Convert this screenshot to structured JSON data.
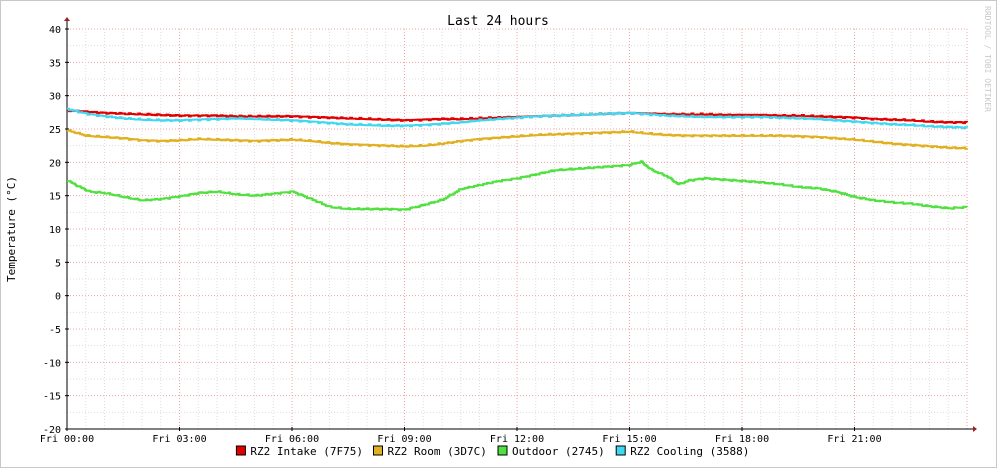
{
  "chart_data": {
    "type": "line",
    "title": "Last 24 hours",
    "ylabel": "Temperature (°C)",
    "xlabel": "",
    "watermark": "RRDTOOL / TOBI OETIKER",
    "ylim": [
      -20,
      40
    ],
    "yticks": [
      "40",
      "35",
      "30",
      "25",
      "20",
      "15",
      "10",
      "5",
      "0",
      "-5",
      "-10",
      "-15",
      "-20"
    ],
    "xlim_hours": [
      0,
      24
    ],
    "xticks": [
      {
        "hour": 0,
        "label": "Fri 00:00"
      },
      {
        "hour": 3,
        "label": "Fri 03:00"
      },
      {
        "hour": 6,
        "label": "Fri 06:00"
      },
      {
        "hour": 9,
        "label": "Fri 09:00"
      },
      {
        "hour": 12,
        "label": "Fri 12:00"
      },
      {
        "hour": 15,
        "label": "Fri 15:00"
      },
      {
        "hour": 18,
        "label": "Fri 18:00"
      },
      {
        "hour": 21,
        "label": "Fri 21:00"
      }
    ],
    "grid": true,
    "legend_position": "bottom",
    "colors": {
      "background": "#ffffff",
      "minor_grid": "#dddddd",
      "major_grid": "#f0a0a0",
      "axis": "#000000",
      "arrow": "#a02020",
      "text": "#000000",
      "watermark": "#c8c8c8"
    },
    "series": [
      {
        "name": "RZ2 Intake (7F75)",
        "color": "#e00000",
        "hours": [
          0,
          0.5,
          1,
          1.5,
          2,
          2.5,
          3,
          3.5,
          4,
          4.5,
          5,
          5.5,
          6,
          6.5,
          7,
          7.5,
          8,
          8.5,
          9,
          9.5,
          10,
          10.5,
          11,
          11.5,
          12,
          12.5,
          13,
          13.5,
          14,
          14.5,
          15,
          15.5,
          16,
          16.5,
          17,
          17.5,
          18,
          18.5,
          19,
          19.5,
          20,
          20.5,
          21,
          21.5,
          22,
          22.5,
          23,
          23.5,
          24
        ],
        "values": [
          27.8,
          27.6,
          27.4,
          27.3,
          27.2,
          27.1,
          27.0,
          27.0,
          27.0,
          26.9,
          26.9,
          26.9,
          26.9,
          26.8,
          26.7,
          26.6,
          26.5,
          26.4,
          26.3,
          26.4,
          26.5,
          26.5,
          26.6,
          26.7,
          26.8,
          26.9,
          27.0,
          27.1,
          27.2,
          27.3,
          27.4,
          27.3,
          27.2,
          27.2,
          27.2,
          27.1,
          27.1,
          27.1,
          27.0,
          27.0,
          26.9,
          26.8,
          26.7,
          26.5,
          26.4,
          26.3,
          26.1,
          26.0,
          26.0
        ]
      },
      {
        "name": "RZ2 Room (3D7C)",
        "color": "#e0b020",
        "hours": [
          0,
          0.5,
          1,
          1.5,
          2,
          2.5,
          3,
          3.5,
          4,
          4.5,
          5,
          5.5,
          6,
          6.5,
          7,
          7.5,
          8,
          8.5,
          9,
          9.5,
          10,
          10.5,
          11,
          11.5,
          12,
          12.5,
          13,
          13.5,
          14,
          14.5,
          15,
          15.5,
          16,
          16.5,
          17,
          17.5,
          18,
          18.5,
          19,
          19.5,
          20,
          20.5,
          21,
          21.5,
          22,
          22.5,
          23,
          23.5,
          24
        ],
        "values": [
          24.8,
          24.0,
          23.8,
          23.6,
          23.3,
          23.2,
          23.3,
          23.5,
          23.4,
          23.3,
          23.2,
          23.3,
          23.4,
          23.2,
          22.9,
          22.7,
          22.6,
          22.5,
          22.4,
          22.5,
          22.8,
          23.2,
          23.5,
          23.7,
          23.9,
          24.1,
          24.2,
          24.3,
          24.4,
          24.5,
          24.6,
          24.3,
          24.1,
          24.0,
          24.0,
          24.0,
          24.0,
          24.0,
          24.0,
          23.9,
          23.8,
          23.6,
          23.4,
          23.1,
          22.8,
          22.6,
          22.4,
          22.2,
          22.1
        ]
      },
      {
        "name": "Outdoor (2745)",
        "color": "#50e040",
        "hours": [
          0,
          0.3,
          0.6,
          1,
          1.5,
          2,
          2.5,
          3,
          3.5,
          4,
          4.5,
          5,
          5.5,
          6,
          6.5,
          7,
          7.5,
          8,
          8.5,
          9,
          9.5,
          10,
          10.5,
          11,
          11.5,
          12,
          12.5,
          13,
          13.5,
          14,
          14.5,
          15,
          15.3,
          15.6,
          16,
          16.3,
          16.6,
          17,
          17.5,
          18,
          18.5,
          19,
          19.5,
          20,
          20.5,
          21,
          21.5,
          22,
          22.5,
          23,
          23.5,
          24
        ],
        "values": [
          17.3,
          16.4,
          15.6,
          15.4,
          14.8,
          14.3,
          14.5,
          14.9,
          15.4,
          15.6,
          15.2,
          15.0,
          15.3,
          15.6,
          14.5,
          13.3,
          13.0,
          13.0,
          13.0,
          12.9,
          13.6,
          14.4,
          16.0,
          16.6,
          17.2,
          17.6,
          18.2,
          18.8,
          19.0,
          19.2,
          19.4,
          19.6,
          20.1,
          18.8,
          17.9,
          16.7,
          17.3,
          17.6,
          17.4,
          17.2,
          17.0,
          16.7,
          16.3,
          16.1,
          15.6,
          14.8,
          14.3,
          14.0,
          13.8,
          13.4,
          13.1,
          13.3
        ]
      },
      {
        "name": "RZ2 Cooling (3588)",
        "color": "#40d8f0",
        "hours": [
          0,
          0.5,
          1,
          1.5,
          2,
          2.5,
          3,
          3.5,
          4,
          4.5,
          5,
          5.5,
          6,
          6.5,
          7,
          7.5,
          8,
          8.5,
          9,
          9.5,
          10,
          10.5,
          11,
          11.5,
          12,
          12.5,
          13,
          13.5,
          14,
          14.5,
          15,
          15.5,
          16,
          16.5,
          17,
          17.5,
          18,
          18.5,
          19,
          19.5,
          20,
          20.5,
          21,
          21.5,
          22,
          22.5,
          23,
          23.5,
          24
        ],
        "values": [
          28.0,
          27.3,
          26.9,
          26.6,
          26.4,
          26.3,
          26.3,
          26.4,
          26.5,
          26.6,
          26.5,
          26.4,
          26.3,
          26.1,
          25.9,
          25.7,
          25.6,
          25.5,
          25.5,
          25.6,
          25.8,
          26.0,
          26.3,
          26.5,
          26.7,
          26.9,
          27.0,
          27.1,
          27.2,
          27.3,
          27.4,
          27.2,
          27.0,
          26.9,
          26.8,
          26.8,
          26.8,
          26.8,
          26.7,
          26.6,
          26.5,
          26.3,
          26.1,
          25.9,
          25.7,
          25.6,
          25.4,
          25.3,
          25.2
        ]
      }
    ]
  }
}
